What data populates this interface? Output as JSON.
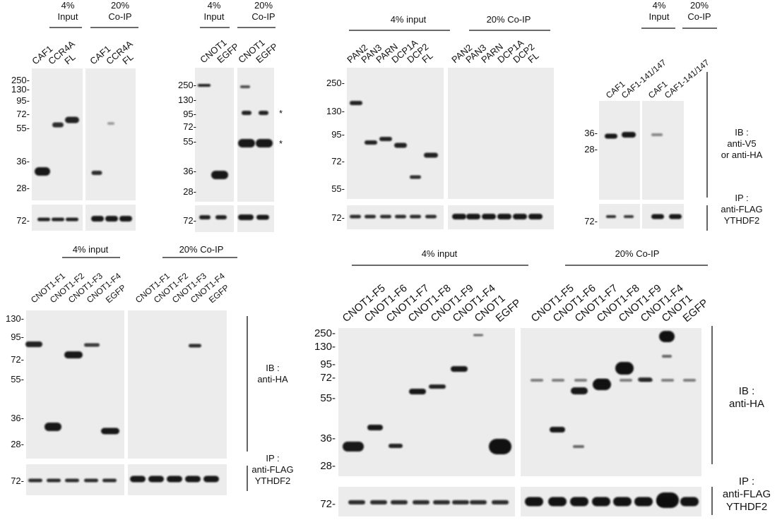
{
  "panel_a": {
    "groups": [
      "4%\nInput",
      "20%\nCo-IP"
    ],
    "lanes": [
      "CAF1",
      "CCR4A",
      "FL",
      "CAF1",
      "CCR4A",
      "FL"
    ],
    "markers": [
      "250-",
      "130-",
      "95-",
      "72-",
      "55-",
      "36-",
      "28-"
    ],
    "loading_marker": "72-"
  },
  "panel_b": {
    "groups": [
      "4%\nInput",
      "20%\nCo-IP"
    ],
    "lanes": [
      "CNOT1",
      "EGFP",
      "CNOT1",
      "EGFP"
    ],
    "markers": [
      "250-",
      "130-",
      "95-",
      "72-",
      "55-",
      "36-",
      "28-"
    ],
    "asterisk": "*",
    "loading_marker": "72-"
  },
  "panel_c": {
    "groups": [
      "4% input",
      "20% Co-IP"
    ],
    "lanes": [
      "PAN2",
      "PAN3",
      "PARN",
      "DCP1A",
      "DCP2",
      "FL",
      "PAN2",
      "PAN3",
      "PARN",
      "DCP1A",
      "DCP2",
      "FL"
    ],
    "markers": [
      "250-",
      "130-",
      "95-",
      "72-",
      "55-"
    ],
    "loading_marker": "72-"
  },
  "panel_d": {
    "groups": [
      "4%\nInput",
      "20%\nCo-IP"
    ],
    "lanes": [
      "CAF1",
      "CAF1-141/147",
      "CAF1",
      "CAF1-141/147"
    ],
    "markers": [
      "36-",
      "28-"
    ],
    "loading_marker": "72-",
    "ib_label": "IB :\nanti-V5\nor anti-HA",
    "ip_label": "IP :\nanti-FLAG\nYTHDF2"
  },
  "panel_e": {
    "groups": [
      "4% input",
      "20% Co-IP"
    ],
    "lanes": [
      "CNOT1-F1",
      "CNOT1-F2",
      "CNOT1-F3",
      "CNOT1-F4",
      "EGFP",
      "CNOT1-F1",
      "CNOT1-F2",
      "CNOT1-F3",
      "CNOT1-F4",
      "EGFP"
    ],
    "markers": [
      "130-",
      "95-",
      "72-",
      "55-",
      "36-",
      "28-"
    ],
    "loading_marker": "72-",
    "ib_label": "IB :\nanti-HA",
    "ip_label": "IP :\nanti-FLAG\nYTHDF2"
  },
  "panel_f": {
    "groups": [
      "4% input",
      "20% Co-IP"
    ],
    "lanes": [
      "CNOT1-F5",
      "CNOT1-F6",
      "CNOT1-F7",
      "CNOT1-F8",
      "CNOT1-F9",
      "CNOT1-F4",
      "CNOT1",
      "EGFP",
      "CNOT1-F5",
      "CNOT1-F6",
      "CNOT1-F7",
      "CNOT1-F8",
      "CNOT1-F9",
      "CNOT1-F4",
      "CNOT1",
      "EGFP"
    ],
    "markers": [
      "250-",
      "130-",
      "95-",
      "72-",
      "55-",
      "36-",
      "28-"
    ],
    "loading_marker": "72-",
    "ib_label": "IB :\nanti-HA",
    "ip_label": "IP :\nanti-FLAG\nYTHDF2"
  }
}
